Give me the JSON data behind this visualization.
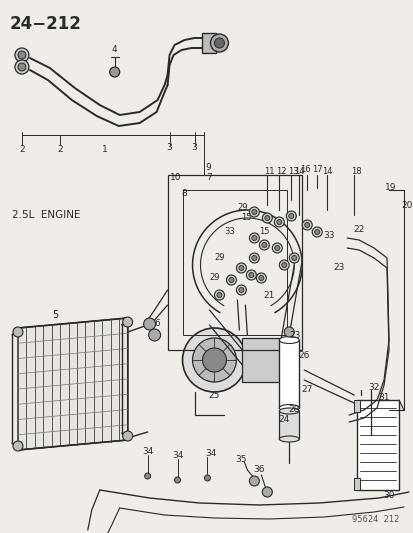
{
  "title": "24−212",
  "subtitle": "2.5L  ENGINE",
  "background_color": "#f0ede8",
  "line_color": "#2a2a2a",
  "watermark": "95624  212",
  "fig_width": 4.14,
  "fig_height": 5.33,
  "dpi": 100
}
